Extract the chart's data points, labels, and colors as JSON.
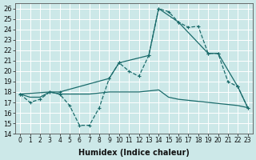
{
  "xlabel": "Humidex (Indice chaleur)",
  "background_color": "#cce8e8",
  "grid_color": "#b0d4d4",
  "line_color": "#1a6b6b",
  "xlim": [
    -0.5,
    23.5
  ],
  "ylim": [
    14,
    26.5
  ],
  "xticks": [
    0,
    1,
    2,
    3,
    4,
    5,
    6,
    7,
    8,
    9,
    10,
    11,
    12,
    13,
    14,
    15,
    16,
    17,
    18,
    19,
    20,
    21,
    22,
    23
  ],
  "yticks": [
    14,
    15,
    16,
    17,
    18,
    19,
    20,
    21,
    22,
    23,
    24,
    25,
    26
  ],
  "line1_x": [
    0,
    1,
    2,
    3,
    4,
    5,
    6,
    7,
    8,
    9,
    10,
    11,
    12,
    13,
    14,
    15,
    16,
    17,
    18,
    19,
    20,
    21,
    22,
    23
  ],
  "line1_y": [
    17.8,
    17.0,
    17.3,
    18.0,
    17.8,
    16.7,
    14.8,
    14.8,
    16.5,
    19.3,
    20.8,
    20.0,
    19.5,
    21.5,
    26.0,
    25.7,
    24.7,
    24.2,
    24.3,
    21.7,
    21.7,
    19.0,
    18.5,
    16.5
  ],
  "line2_x": [
    0,
    3,
    4,
    9,
    10,
    13,
    14,
    16,
    19,
    20,
    22,
    23
  ],
  "line2_y": [
    17.8,
    18.0,
    18.0,
    19.3,
    20.8,
    21.5,
    26.0,
    24.7,
    21.7,
    21.7,
    18.5,
    16.5
  ],
  "line3_x": [
    0,
    1,
    2,
    3,
    4,
    5,
    6,
    7,
    8,
    9,
    10,
    11,
    12,
    13,
    14,
    15,
    16,
    17,
    18,
    19,
    20,
    21,
    22,
    23
  ],
  "line3_y": [
    17.8,
    17.5,
    17.5,
    18.0,
    17.8,
    17.8,
    17.8,
    17.8,
    17.9,
    18.0,
    18.0,
    18.0,
    18.0,
    18.1,
    18.2,
    17.5,
    17.3,
    17.2,
    17.1,
    17.0,
    16.9,
    16.8,
    16.7,
    16.5
  ]
}
